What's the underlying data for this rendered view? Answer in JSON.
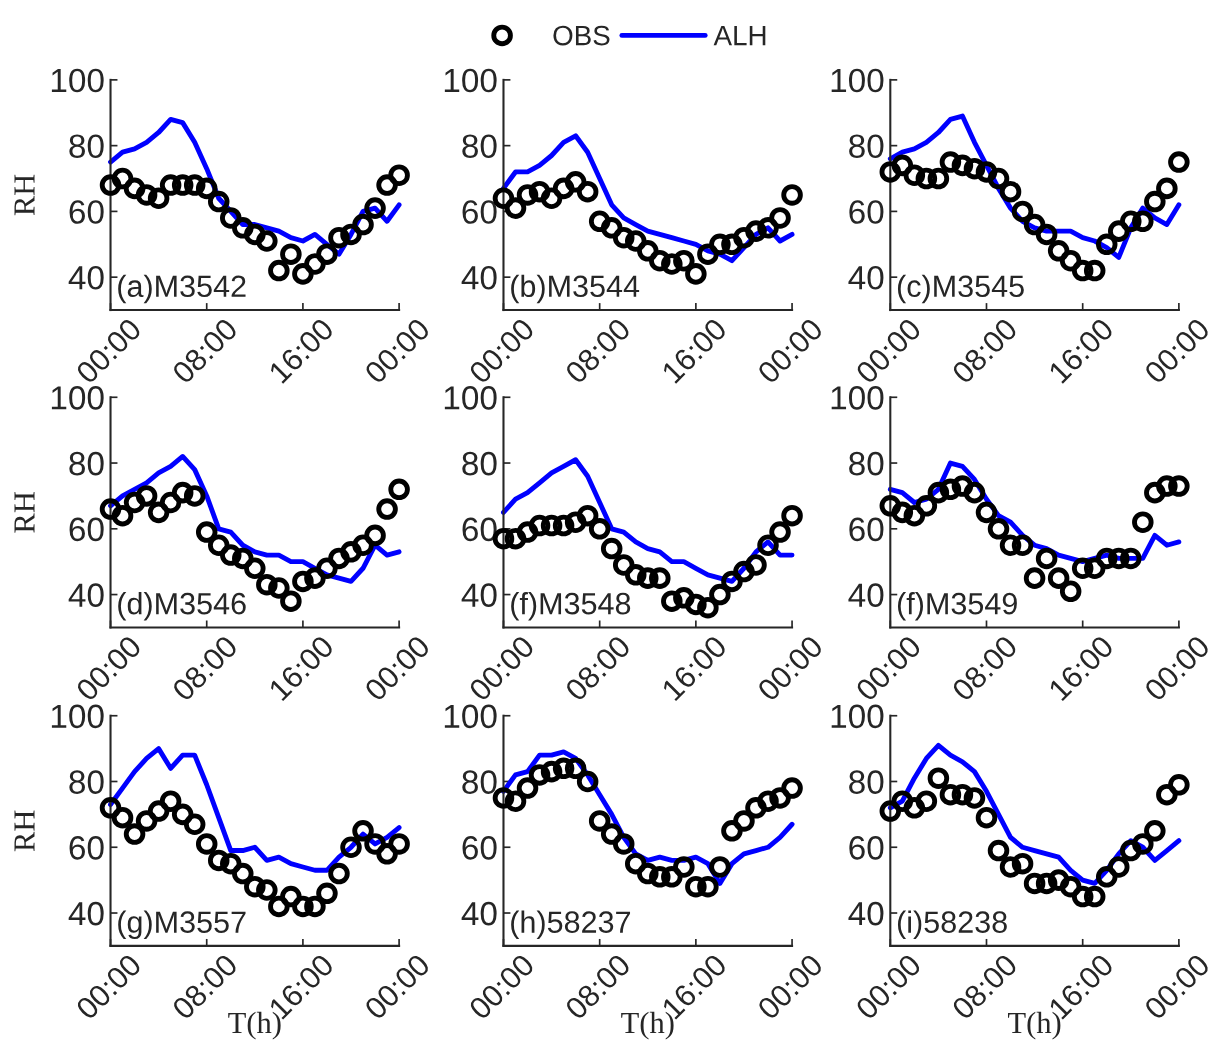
{
  "chart_data": [
    {
      "type": "line",
      "title": "(a)M3542",
      "ylabel": "RH",
      "legend": "top",
      "x": [
        0,
        1,
        2,
        3,
        4,
        5,
        6,
        7,
        8,
        9,
        10,
        11,
        12,
        13,
        14,
        15,
        16,
        17,
        18,
        19,
        20,
        21,
        22,
        23,
        24
      ],
      "xlim": [
        0,
        24
      ],
      "ylim": [
        30,
        100
      ],
      "xticks": [
        {
          "value": 0,
          "label": "00:00"
        },
        {
          "value": 8,
          "label": "08:00"
        },
        {
          "value": 16,
          "label": "16:00"
        },
        {
          "value": 24,
          "label": "00:00"
        }
      ],
      "yticks": [
        40,
        60,
        80,
        100
      ],
      "series": [
        {
          "name": "OBS",
          "type": "scatter",
          "marker": "circle",
          "color": "#000000",
          "values": [
            68,
            70,
            67,
            65,
            64,
            68,
            68,
            68,
            67,
            63,
            58,
            55,
            53,
            51,
            42,
            47,
            41,
            44,
            47,
            52,
            53,
            56,
            61,
            68,
            71
          ]
        },
        {
          "name": "ALH",
          "color": "#0000ff",
          "values": [
            75,
            78,
            79,
            81,
            84,
            88,
            87,
            81,
            73,
            64,
            60,
            56,
            56,
            55,
            54,
            52,
            51,
            53,
            50,
            47,
            53,
            60,
            61,
            57,
            62
          ]
        }
      ]
    },
    {
      "type": "line",
      "title": "(b)M3544",
      "x": [
        0,
        1,
        2,
        3,
        4,
        5,
        6,
        7,
        8,
        9,
        10,
        11,
        12,
        13,
        14,
        15,
        16,
        17,
        18,
        19,
        20,
        21,
        22,
        23,
        24
      ],
      "xlim": [
        0,
        24
      ],
      "ylim": [
        30,
        100
      ],
      "xticks": [
        {
          "value": 0,
          "label": "00:00"
        },
        {
          "value": 8,
          "label": "08:00"
        },
        {
          "value": 16,
          "label": "16:00"
        },
        {
          "value": 24,
          "label": "00:00"
        }
      ],
      "yticks": [
        40,
        60,
        80,
        100
      ],
      "series": [
        {
          "type": "scatter",
          "marker": "circle",
          "color": "#000000",
          "values": [
            64,
            61,
            65,
            66,
            64,
            67,
            69,
            66,
            57,
            55,
            52,
            51,
            48,
            45,
            44,
            45,
            41,
            47,
            50,
            50,
            52,
            54,
            55,
            58,
            65
          ]
        },
        {
          "color": "#0000ff",
          "values": [
            67,
            72,
            72,
            74,
            77,
            81,
            83,
            78,
            70,
            62,
            58,
            56,
            54,
            53,
            52,
            51,
            50,
            48,
            47,
            45,
            49,
            53,
            55,
            51,
            53
          ]
        }
      ]
    },
    {
      "type": "line",
      "title": "(c)M3545",
      "x": [
        0,
        1,
        2,
        3,
        4,
        5,
        6,
        7,
        8,
        9,
        10,
        11,
        12,
        13,
        14,
        15,
        16,
        17,
        18,
        19,
        20,
        21,
        22,
        23,
        24
      ],
      "xlim": [
        0,
        24
      ],
      "ylim": [
        30,
        100
      ],
      "xticks": [
        {
          "value": 0,
          "label": "00:00"
        },
        {
          "value": 8,
          "label": "08:00"
        },
        {
          "value": 16,
          "label": "16:00"
        },
        {
          "value": 24,
          "label": "00:00"
        }
      ],
      "yticks": [
        40,
        60,
        80,
        100
      ],
      "series": [
        {
          "type": "scatter",
          "marker": "circle",
          "color": "#000000",
          "values": [
            72,
            74,
            71,
            70,
            70,
            75,
            74,
            73,
            72,
            70,
            66,
            60,
            56,
            53,
            48,
            45,
            42,
            42,
            50,
            54,
            57,
            57,
            63,
            67,
            75
          ]
        },
        {
          "color": "#0000ff",
          "values": [
            76,
            78,
            79,
            81,
            84,
            88,
            89,
            81,
            74,
            67,
            61,
            57,
            55,
            54,
            54,
            54,
            52,
            51,
            49,
            46,
            55,
            61,
            58,
            56,
            62
          ]
        }
      ]
    },
    {
      "type": "line",
      "title": "(d)M3546",
      "ylabel": "RH",
      "x": [
        0,
        1,
        2,
        3,
        4,
        5,
        6,
        7,
        8,
        9,
        10,
        11,
        12,
        13,
        14,
        15,
        16,
        17,
        18,
        19,
        20,
        21,
        22,
        23,
        24
      ],
      "xlim": [
        0,
        24
      ],
      "ylim": [
        30,
        100
      ],
      "xticks": [
        {
          "value": 0,
          "label": "00:00"
        },
        {
          "value": 8,
          "label": "08:00"
        },
        {
          "value": 16,
          "label": "16:00"
        },
        {
          "value": 24,
          "label": "00:00"
        }
      ],
      "yticks": [
        40,
        60,
        80,
        100
      ],
      "series": [
        {
          "type": "scatter",
          "marker": "circle",
          "color": "#000000",
          "values": [
            66,
            64,
            68,
            70,
            65,
            68,
            71,
            70,
            59,
            55,
            52,
            51,
            48,
            43,
            42,
            38,
            44,
            45,
            48,
            51,
            53,
            55,
            58,
            66,
            72
          ]
        },
        {
          "color": "#0000ff",
          "values": [
            67,
            70,
            72,
            74,
            77,
            79,
            82,
            78,
            70,
            60,
            59,
            55,
            53,
            52,
            52,
            50,
            50,
            48,
            46,
            45,
            44,
            48,
            55,
            52,
            53
          ]
        }
      ]
    },
    {
      "type": "line",
      "title": "(f)M3548",
      "x": [
        0,
        1,
        2,
        3,
        4,
        5,
        6,
        7,
        8,
        9,
        10,
        11,
        12,
        13,
        14,
        15,
        16,
        17,
        18,
        19,
        20,
        21,
        22,
        23,
        24
      ],
      "xlim": [
        0,
        24
      ],
      "ylim": [
        30,
        100
      ],
      "xticks": [
        {
          "value": 0,
          "label": "00:00"
        },
        {
          "value": 8,
          "label": "08:00"
        },
        {
          "value": 16,
          "label": "16:00"
        },
        {
          "value": 24,
          "label": "00:00"
        }
      ],
      "yticks": [
        40,
        60,
        80,
        100
      ],
      "series": [
        {
          "type": "scatter",
          "marker": "circle",
          "color": "#000000",
          "values": [
            57,
            57,
            59,
            61,
            61,
            61,
            62,
            64,
            60,
            54,
            49,
            46,
            45,
            45,
            38,
            39,
            37,
            36,
            40,
            44,
            47,
            49,
            55,
            59,
            64
          ]
        },
        {
          "color": "#0000ff",
          "values": [
            65,
            69,
            71,
            74,
            77,
            79,
            81,
            76,
            68,
            60,
            59,
            56,
            54,
            53,
            50,
            50,
            48,
            46,
            45,
            44,
            48,
            53,
            56,
            52,
            52
          ]
        }
      ]
    },
    {
      "type": "line",
      "title": "(f)M3549",
      "x": [
        0,
        1,
        2,
        3,
        4,
        5,
        6,
        7,
        8,
        9,
        10,
        11,
        12,
        13,
        14,
        15,
        16,
        17,
        18,
        19,
        20,
        21,
        22,
        23,
        24
      ],
      "xlim": [
        0,
        24
      ],
      "ylim": [
        30,
        100
      ],
      "xticks": [
        {
          "value": 0,
          "label": "00:00"
        },
        {
          "value": 8,
          "label": "08:00"
        },
        {
          "value": 16,
          "label": "16:00"
        },
        {
          "value": 24,
          "label": "00:00"
        }
      ],
      "yticks": [
        40,
        60,
        80,
        100
      ],
      "series": [
        {
          "type": "scatter",
          "marker": "circle",
          "color": "#000000",
          "values": [
            67,
            65,
            64,
            67,
            71,
            72,
            73,
            71,
            65,
            60,
            55,
            55,
            45,
            51,
            45,
            41,
            48,
            48,
            51,
            51,
            51,
            62,
            71,
            73,
            73
          ]
        },
        {
          "color": "#0000ff",
          "values": [
            72,
            71,
            68,
            69,
            72,
            80,
            79,
            75,
            69,
            64,
            62,
            58,
            55,
            54,
            52,
            51,
            50,
            51,
            52,
            51,
            51,
            51,
            58,
            55,
            56
          ]
        }
      ]
    },
    {
      "type": "line",
      "title": "(g)M3557",
      "ylabel": "RH",
      "xlabel": "T(h)",
      "x": [
        0,
        1,
        2,
        3,
        4,
        5,
        6,
        7,
        8,
        9,
        10,
        11,
        12,
        13,
        14,
        15,
        16,
        17,
        18,
        19,
        20,
        21,
        22,
        23,
        24
      ],
      "xlim": [
        0,
        24
      ],
      "ylim": [
        30,
        100
      ],
      "xticks": [
        {
          "value": 0,
          "label": "00:00"
        },
        {
          "value": 8,
          "label": "08:00"
        },
        {
          "value": 16,
          "label": "16:00"
        },
        {
          "value": 24,
          "label": "00:00"
        }
      ],
      "yticks": [
        40,
        60,
        80,
        100
      ],
      "series": [
        {
          "type": "scatter",
          "marker": "circle",
          "color": "#000000",
          "values": [
            72,
            69,
            64,
            68,
            71,
            74,
            70,
            67,
            61,
            56,
            55,
            52,
            48,
            47,
            42,
            45,
            42,
            42,
            46,
            52,
            60,
            65,
            61,
            58,
            61
          ]
        },
        {
          "color": "#0000ff",
          "values": [
            73,
            78,
            83,
            87,
            90,
            84,
            88,
            88,
            79,
            69,
            59,
            59,
            60,
            56,
            57,
            55,
            54,
            53,
            53,
            57,
            60,
            64,
            61,
            63,
            66
          ]
        }
      ]
    },
    {
      "type": "line",
      "title": "(h)58237",
      "xlabel": "T(h)",
      "x": [
        0,
        1,
        2,
        3,
        4,
        5,
        6,
        7,
        8,
        9,
        10,
        11,
        12,
        13,
        14,
        15,
        16,
        17,
        18,
        19,
        20,
        21,
        22,
        23,
        24
      ],
      "xlim": [
        0,
        24
      ],
      "ylim": [
        30,
        100
      ],
      "xticks": [
        {
          "value": 0,
          "label": "00:00"
        },
        {
          "value": 8,
          "label": "08:00"
        },
        {
          "value": 16,
          "label": "16:00"
        },
        {
          "value": 24,
          "label": "00:00"
        }
      ],
      "yticks": [
        40,
        60,
        80,
        100
      ],
      "series": [
        {
          "type": "scatter",
          "marker": "circle",
          "color": "#000000",
          "values": [
            75,
            74,
            78,
            82,
            83,
            84,
            84,
            80,
            68,
            64,
            61,
            55,
            52,
            51,
            51,
            54,
            48,
            48,
            54,
            65,
            68,
            72,
            74,
            75,
            78
          ]
        },
        {
          "color": "#0000ff",
          "values": [
            77,
            82,
            83,
            88,
            88,
            89,
            87,
            82,
            76,
            70,
            63,
            58,
            56,
            57,
            56,
            56,
            57,
            55,
            49,
            55,
            58,
            59,
            60,
            63,
            67
          ]
        }
      ]
    },
    {
      "type": "line",
      "title": "(i)58238",
      "xlabel": "T(h)",
      "x": [
        0,
        1,
        2,
        3,
        4,
        5,
        6,
        7,
        8,
        9,
        10,
        11,
        12,
        13,
        14,
        15,
        16,
        17,
        18,
        19,
        20,
        21,
        22,
        23,
        24
      ],
      "xlim": [
        0,
        24
      ],
      "ylim": [
        30,
        100
      ],
      "xticks": [
        {
          "value": 0,
          "label": "00:00"
        },
        {
          "value": 8,
          "label": "08:00"
        },
        {
          "value": 16,
          "label": "16:00"
        },
        {
          "value": 24,
          "label": "00:00"
        }
      ],
      "yticks": [
        40,
        60,
        80,
        100
      ],
      "series": [
        {
          "type": "scatter",
          "marker": "circle",
          "color": "#000000",
          "values": [
            71,
            74,
            72,
            74,
            81,
            76,
            76,
            75,
            69,
            59,
            54,
            55,
            49,
            49,
            50,
            48,
            45,
            45,
            51,
            54,
            59,
            61,
            65,
            76,
            79
          ]
        },
        {
          "color": "#0000ff",
          "values": [
            72,
            74,
            81,
            87,
            91,
            88,
            86,
            83,
            77,
            70,
            63,
            60,
            59,
            58,
            57,
            53,
            50,
            49,
            53,
            58,
            62,
            60,
            56,
            59,
            62
          ]
        }
      ]
    }
  ]
}
